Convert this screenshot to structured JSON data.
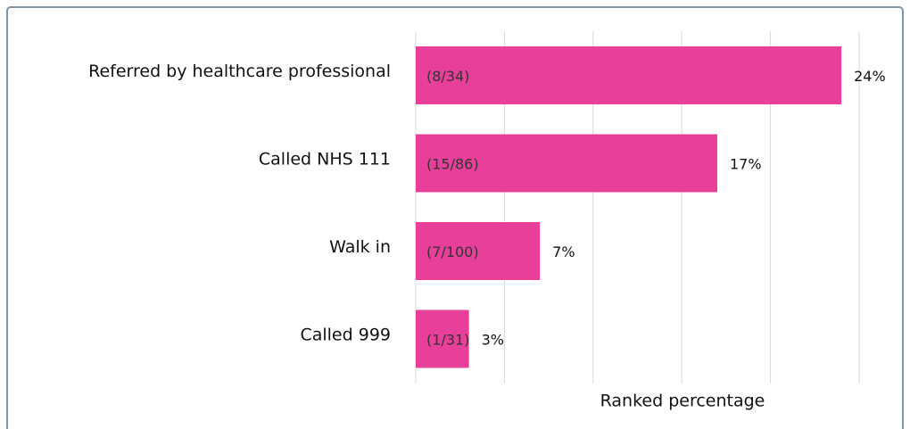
{
  "chart_data": {
    "type": "hbar",
    "categories": [
      "Referred by healthcare professional",
      "Called NHS 111",
      "Walk in",
      "Called 999"
    ],
    "values": [
      24,
      17,
      7,
      3
    ],
    "value_labels": [
      "24%",
      "17%",
      "7%",
      "3%"
    ],
    "fractions": [
      "(8/34)",
      "(15/86)",
      "(7/100)",
      "(1/31)"
    ],
    "color": "#e8409a",
    "xlabel": "Ranked percentage",
    "xlim": [
      0,
      25
    ],
    "xticks": [
      0,
      5,
      10,
      15,
      20,
      25
    ],
    "grid": true
  }
}
